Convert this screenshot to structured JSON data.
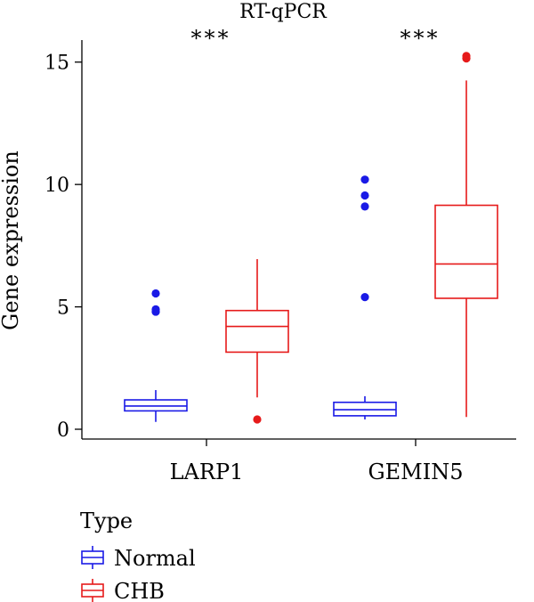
{
  "chart_data": {
    "type": "box",
    "title": "RT-qPCR",
    "xlabel": "",
    "ylabel": "Gene expression",
    "ylim": [
      -0.4,
      15.9
    ],
    "yticks": [
      0,
      5,
      10,
      15
    ],
    "categories": [
      "LARP1",
      "GEMIN5"
    ],
    "significance": [
      "***",
      "***"
    ],
    "legend": {
      "title": "Type",
      "position": "bottom-left"
    },
    "series": [
      {
        "name": "Normal",
        "color": "#1a1ae6",
        "boxes": [
          {
            "category": "LARP1",
            "whisker_low": 0.3,
            "q1": 0.75,
            "median": 0.95,
            "q3": 1.2,
            "whisker_high": 1.6,
            "outliers": [
              4.8,
              4.9,
              5.55
            ]
          },
          {
            "category": "GEMIN5",
            "whisker_low": 0.4,
            "q1": 0.55,
            "median": 0.8,
            "q3": 1.1,
            "whisker_high": 1.35,
            "outliers": [
              5.4,
              9.1,
              9.55,
              10.2
            ]
          }
        ]
      },
      {
        "name": "CHB",
        "color": "#e61a1a",
        "boxes": [
          {
            "category": "LARP1",
            "whisker_low": 1.3,
            "q1": 3.15,
            "median": 4.2,
            "q3": 4.85,
            "whisker_high": 6.95,
            "outliers": [
              0.4
            ]
          },
          {
            "category": "GEMIN5",
            "whisker_low": 0.5,
            "q1": 5.35,
            "median": 6.75,
            "q3": 9.15,
            "whisker_high": 14.25,
            "outliers": [
              15.15,
              15.25
            ]
          }
        ]
      }
    ]
  }
}
